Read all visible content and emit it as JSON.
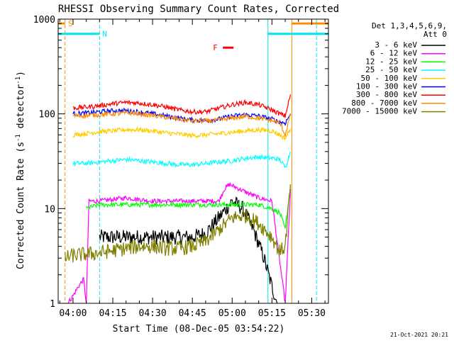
{
  "chart_data": {
    "type": "line",
    "title": "RHESSI Observing Summary Count Rates, Corrected",
    "xlabel": "Start Time (08-Dec-05 03:54:22)",
    "ylabel": "Corrected Count Rate (s^-1 detector^-1)",
    "ylabel_parts": {
      "main": "Corrected Count Rate (s",
      "sup1": "-1",
      "mid": " detector",
      "sup2": "-1",
      "end": ")"
    },
    "x_ticks": [
      "04:00",
      "04:15",
      "04:30",
      "04:45",
      "05:00",
      "05:15",
      "05:30"
    ],
    "x_tick_minutes": [
      0,
      15,
      30,
      45,
      60,
      75,
      90
    ],
    "xlim_minutes": [
      -5.6,
      96.3
    ],
    "y_scale": "log",
    "ylim": [
      1,
      1000
    ],
    "y_ticks": [
      "1",
      "10",
      "100",
      "1000"
    ],
    "y_tick_values": [
      1,
      10,
      100,
      1000
    ],
    "grid": false,
    "legend_position": "right",
    "legend_header": [
      "Det 1,3,4,5,6,9,",
      "Att 0"
    ],
    "footer_date": "21-Oct-2021 20:21",
    "flags": {
      "saa": {
        "label": "S",
        "color": "#ff8c00",
        "start": -5.6,
        "end": -3.0,
        "start2": 82.5,
        "end2": 96.3,
        "level": 900
      },
      "night": {
        "label": "N",
        "color": "#00e5ee",
        "start": -5.6,
        "end": 10.0,
        "start2": 73.5,
        "end2": 96.3,
        "level": 700
      },
      "flare": {
        "label": "F",
        "color": "#ff0000",
        "start": 56.5,
        "end": 60.5,
        "level": 500
      }
    },
    "vlines": [
      {
        "minute": -3.0,
        "color": "#ff8c00",
        "dashed": true
      },
      {
        "minute": 10.0,
        "color": "#00e5ee",
        "dashed": true
      },
      {
        "minute": 73.5,
        "color": "#00e5ee",
        "dashed": false
      },
      {
        "minute": 82.5,
        "color": "#ff8c00",
        "dashed": false
      },
      {
        "minute": 91.8,
        "color": "#00e5ee",
        "dashed": true
      }
    ],
    "series": [
      {
        "name": "3 - 6 keV",
        "color": "#000000",
        "x": [
          10,
          15,
          20,
          25,
          30,
          35,
          40,
          45,
          50,
          55,
          60,
          64,
          68,
          72,
          75,
          77
        ],
        "y": [
          5,
          5,
          5,
          5,
          5,
          5,
          5,
          5,
          5.5,
          8,
          12,
          10,
          6,
          3,
          1.5,
          1
        ]
      },
      {
        "name": "6 - 12 keV",
        "color": "#ff00ff",
        "x": [
          -2,
          0,
          2,
          4,
          5,
          6,
          8,
          10,
          20,
          30,
          40,
          50,
          55,
          57,
          59,
          61,
          65,
          70,
          75,
          80,
          82
        ],
        "y": [
          1,
          1.2,
          1.5,
          1.8,
          1,
          12,
          12,
          12,
          13,
          12,
          12,
          12,
          12,
          16,
          18,
          17,
          15,
          13,
          12,
          1,
          16
        ]
      },
      {
        "name": "12 - 25 keV",
        "color": "#00ff00",
        "x": [
          5,
          10,
          15,
          20,
          25,
          30,
          35,
          40,
          45,
          50,
          55,
          60,
          65,
          70,
          75,
          78,
          80,
          82
        ],
        "y": [
          10,
          11,
          11,
          11,
          11,
          11,
          11,
          11,
          11,
          11,
          11,
          11,
          11,
          11,
          10,
          9,
          6,
          18
        ]
      },
      {
        "name": "25 - 50 keV",
        "color": "#00ffff",
        "x": [
          0,
          5,
          10,
          15,
          20,
          25,
          30,
          35,
          40,
          45,
          50,
          55,
          60,
          65,
          70,
          75,
          78,
          80,
          82
        ],
        "y": [
          30,
          30,
          31,
          32,
          33,
          32,
          31,
          30,
          29,
          29,
          30,
          31,
          32,
          34,
          35,
          34,
          33,
          27,
          40
        ]
      },
      {
        "name": "50 - 100 keV",
        "color": "#ffcc00",
        "x": [
          0,
          5,
          10,
          15,
          20,
          25,
          30,
          35,
          40,
          45,
          50,
          55,
          60,
          65,
          70,
          75,
          78,
          80,
          82
        ],
        "y": [
          60,
          62,
          65,
          66,
          68,
          68,
          66,
          63,
          61,
          59,
          60,
          62,
          64,
          66,
          68,
          66,
          60,
          55,
          70
        ]
      },
      {
        "name": "100 - 300 keV",
        "color": "#0000ff",
        "x": [
          0,
          5,
          10,
          15,
          20,
          25,
          30,
          35,
          40,
          45,
          50,
          55,
          60,
          65,
          70,
          75,
          78,
          80,
          82
        ],
        "y": [
          100,
          102,
          105,
          108,
          108,
          105,
          100,
          95,
          90,
          86,
          85,
          88,
          95,
          98,
          95,
          88,
          82,
          80,
          100
        ]
      },
      {
        "name": "300 - 800 keV",
        "color": "#ff0000",
        "x": [
          0,
          5,
          10,
          15,
          20,
          25,
          30,
          35,
          40,
          45,
          50,
          55,
          60,
          65,
          70,
          75,
          78,
          80,
          82
        ],
        "y": [
          115,
          118,
          122,
          128,
          132,
          130,
          125,
          118,
          110,
          105,
          105,
          115,
          125,
          132,
          125,
          110,
          100,
          95,
          160
        ]
      },
      {
        "name": "800 - 7000 keV",
        "color": "#ff8c00",
        "x": [
          0,
          5,
          10,
          15,
          20,
          25,
          30,
          35,
          40,
          45,
          50,
          55,
          60,
          65,
          70,
          75,
          78,
          80,
          82
        ],
        "y": [
          95,
          96,
          98,
          100,
          102,
          100,
          96,
          92,
          88,
          84,
          84,
          86,
          90,
          94,
          90,
          85,
          80,
          60,
          100
        ]
      },
      {
        "name": "7000 - 15000 keV",
        "color": "#808000",
        "x": [
          -3,
          0,
          5,
          10,
          15,
          20,
          25,
          30,
          35,
          40,
          45,
          50,
          55,
          60,
          65,
          70,
          75,
          78,
          80,
          82
        ],
        "y": [
          3,
          3.2,
          3.3,
          3.4,
          3.6,
          3.8,
          4,
          4,
          3.8,
          3.8,
          4,
          4.5,
          6,
          8,
          8.5,
          7,
          5,
          3.5,
          4,
          18
        ]
      }
    ]
  }
}
